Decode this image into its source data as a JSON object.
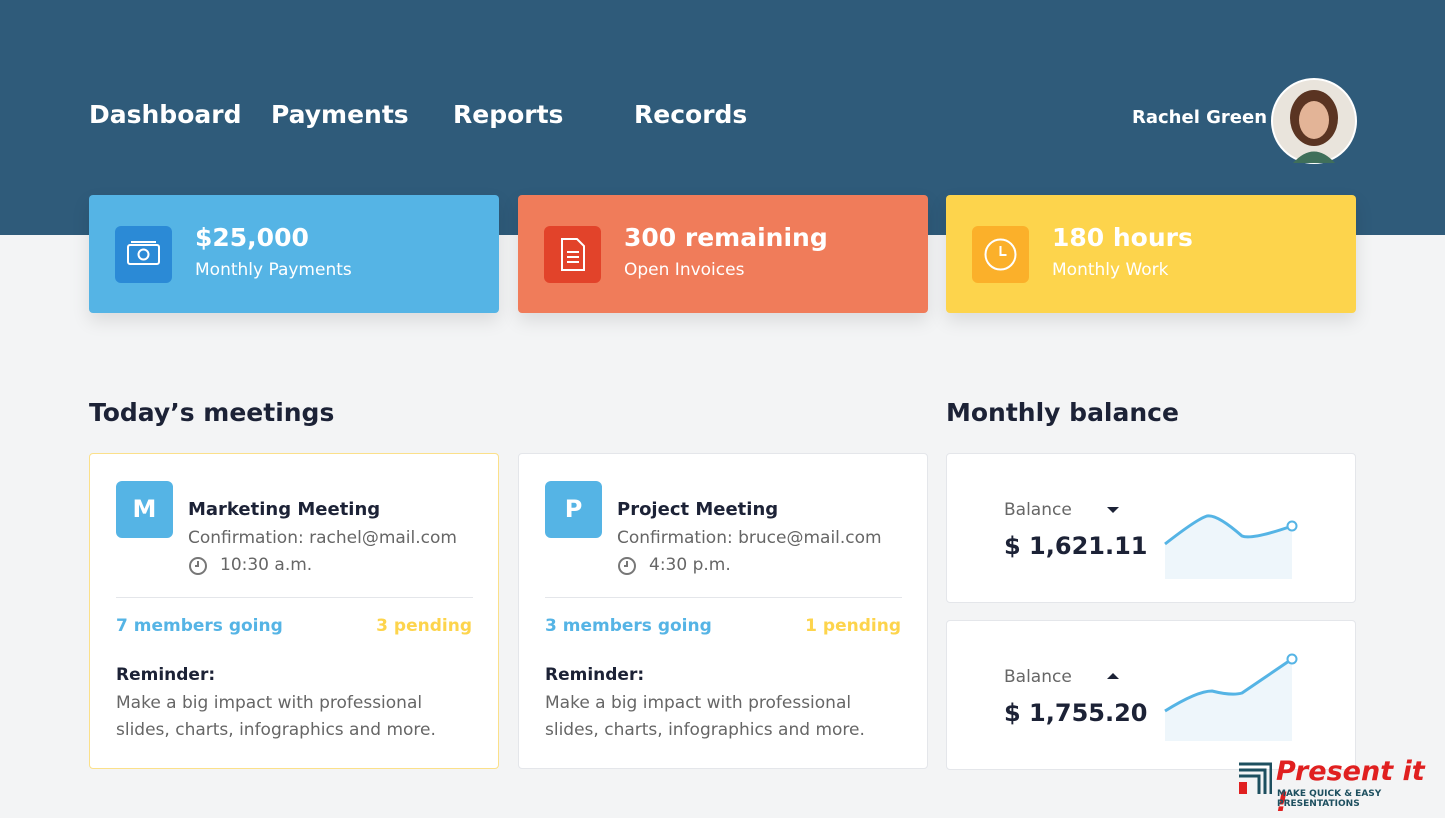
{
  "nav": {
    "items": [
      "Dashboard",
      "Payments",
      "Reports",
      "Records"
    ],
    "user_name": "Rachel Green"
  },
  "stats": [
    {
      "value": "$25,000",
      "label": "Monthly Payments"
    },
    {
      "value": "300 remaining",
      "label": "Open Invoices"
    },
    {
      "value": "180 hours",
      "label": "Monthly Work"
    }
  ],
  "meetings": {
    "title": "Today’s meetings",
    "items": [
      {
        "initial": "M",
        "title": "Marketing Meeting",
        "confirmation": "Confirmation: rachel@mail.com",
        "time": "10:30 a.m.",
        "going": "7 members going",
        "pending": "3 pending",
        "reminder_title": "Reminder:",
        "reminder_text": "Make a big impact with professional slides, charts, infographics and more."
      },
      {
        "initial": "P",
        "title": "Project Meeting",
        "confirmation": "Confirmation: bruce@mail.com",
        "time": "4:30 p.m.",
        "going": "3 members going",
        "pending": "1 pending",
        "reminder_title": "Reminder:",
        "reminder_text": "Make a big impact with professional slides, charts, infographics and more."
      }
    ]
  },
  "balance": {
    "title": "Monthly balance",
    "items": [
      {
        "label": "Balance",
        "amount": "$ 1,621.11"
      },
      {
        "label": "Balance",
        "amount": "$ 1,755.20"
      }
    ]
  },
  "logo": {
    "name": "Present it !",
    "tagline": "MAKE QUICK & EASY PRESENTATIONS"
  }
}
